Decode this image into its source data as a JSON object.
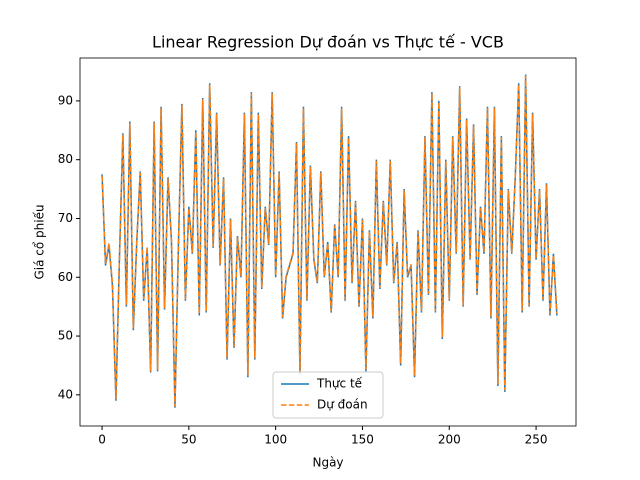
{
  "chart_data": {
    "type": "line",
    "title": "Linear Regression Dự đoán vs Thực tế - VCB",
    "x_label": "Ngày",
    "y_label": "Giá cổ phiếu",
    "x": [
      0,
      2,
      4,
      6,
      8,
      10,
      12,
      14,
      16,
      18,
      20,
      22,
      24,
      26,
      28,
      30,
      32,
      34,
      36,
      38,
      40,
      42,
      44,
      46,
      48,
      50,
      52,
      54,
      56,
      58,
      60,
      62,
      64,
      66,
      68,
      70,
      72,
      74,
      76,
      78,
      80,
      82,
      84,
      86,
      88,
      90,
      92,
      94,
      96,
      98,
      100,
      102,
      104,
      106,
      108,
      110,
      112,
      114,
      116,
      118,
      120,
      122,
      124,
      126,
      128,
      130,
      132,
      134,
      136,
      138,
      140,
      142,
      144,
      146,
      148,
      150,
      152,
      154,
      156,
      158,
      160,
      162,
      164,
      166,
      168,
      170,
      172,
      174,
      176,
      178,
      180,
      182,
      184,
      186,
      188,
      190,
      192,
      194,
      196,
      198,
      200,
      202,
      204,
      206,
      208,
      210,
      212,
      214,
      216,
      218,
      220,
      222,
      224,
      226,
      228,
      230,
      232,
      234,
      236,
      238,
      240,
      242,
      244,
      246,
      248,
      250,
      252,
      254,
      256,
      258,
      260,
      262
    ],
    "series": [
      {
        "name": "Thực tế",
        "color": "#1f77b4",
        "dash": "solid",
        "values": [
          77.5,
          62,
          65.5,
          58.5,
          39,
          63,
          84.5,
          55,
          86.5,
          51,
          66,
          78,
          56,
          65,
          43.8,
          86.5,
          44,
          89,
          54.5,
          77,
          66,
          37.8,
          65.5,
          89.5,
          56,
          72,
          64,
          85,
          53.5,
          90.5,
          54,
          93,
          65,
          88,
          62,
          77,
          46,
          70,
          48,
          67,
          60,
          88,
          43,
          91.5,
          46,
          88,
          58,
          72,
          65.5,
          91.5,
          60,
          78,
          53,
          60,
          62,
          64,
          83,
          43.5,
          89,
          56,
          79,
          63,
          59,
          78,
          60,
          66,
          54,
          69,
          60,
          89,
          56,
          84,
          59,
          73,
          55,
          70,
          44,
          68,
          53,
          80,
          58,
          73,
          62,
          80,
          59,
          66,
          45,
          75,
          60,
          62,
          43,
          68,
          54,
          84,
          57,
          91.5,
          54,
          90,
          49.5,
          80,
          56,
          84,
          64,
          92.5,
          55,
          87,
          63,
          86,
          57,
          72,
          64,
          89,
          53,
          89,
          41.5,
          84,
          40.5,
          75,
          64,
          77,
          93,
          54,
          94.5,
          55,
          88,
          63,
          75,
          56,
          76,
          53.5,
          64,
          53.5
        ]
      },
      {
        "name": "Dự đoán",
        "color": "#ff7f0e",
        "dash": "dashed",
        "values": [
          77.2,
          62.3,
          65.8,
          58.8,
          39.3,
          63.2,
          84.3,
          55.3,
          86.2,
          51.3,
          66.2,
          77.8,
          56.3,
          65.2,
          44,
          86.3,
          44.2,
          88.8,
          54.7,
          76.8,
          66.2,
          38,
          65.7,
          89.3,
          56.2,
          71.8,
          64.2,
          84.8,
          53.8,
          90.3,
          54.2,
          92.8,
          65.2,
          87.8,
          62.2,
          76.8,
          46.3,
          69.8,
          48.2,
          66.8,
          60.2,
          87.8,
          43.3,
          91.3,
          46.2,
          87.8,
          58.2,
          71.8,
          65.7,
          91.3,
          60.2,
          77.8,
          53.2,
          60.2,
          62.2,
          64.2,
          82.8,
          43.8,
          88.8,
          56.2,
          78.8,
          63.2,
          59.2,
          77.8,
          60.2,
          65.8,
          54.2,
          68.8,
          60.2,
          88.8,
          56.2,
          83.8,
          59.2,
          72.8,
          55.2,
          69.8,
          44.3,
          67.8,
          53.3,
          79.8,
          58.2,
          72.8,
          62.2,
          79.8,
          59.2,
          65.8,
          45.3,
          74.8,
          60.2,
          62.2,
          43.3,
          67.8,
          54.2,
          83.8,
          57.2,
          91.3,
          54.2,
          89.8,
          49.8,
          79.8,
          56.2,
          83.8,
          64.2,
          92.3,
          55.2,
          86.8,
          63.2,
          85.8,
          57.2,
          71.8,
          64.2,
          88.8,
          53.3,
          88.8,
          41.8,
          83.8,
          40.8,
          74.8,
          64.2,
          76.8,
          92.8,
          54.3,
          94.3,
          55.2,
          87.8,
          63.2,
          74.8,
          56.2,
          75.8,
          53.8,
          63.8,
          53.8
        ]
      }
    ],
    "xlim": [
      -12.7,
      273
    ],
    "ylim": [
      34.7,
      97.3
    ],
    "xticks": [
      0,
      50,
      100,
      150,
      200,
      250
    ],
    "yticks": [
      40,
      50,
      60,
      70,
      80,
      90
    ],
    "legend": "lower center"
  }
}
